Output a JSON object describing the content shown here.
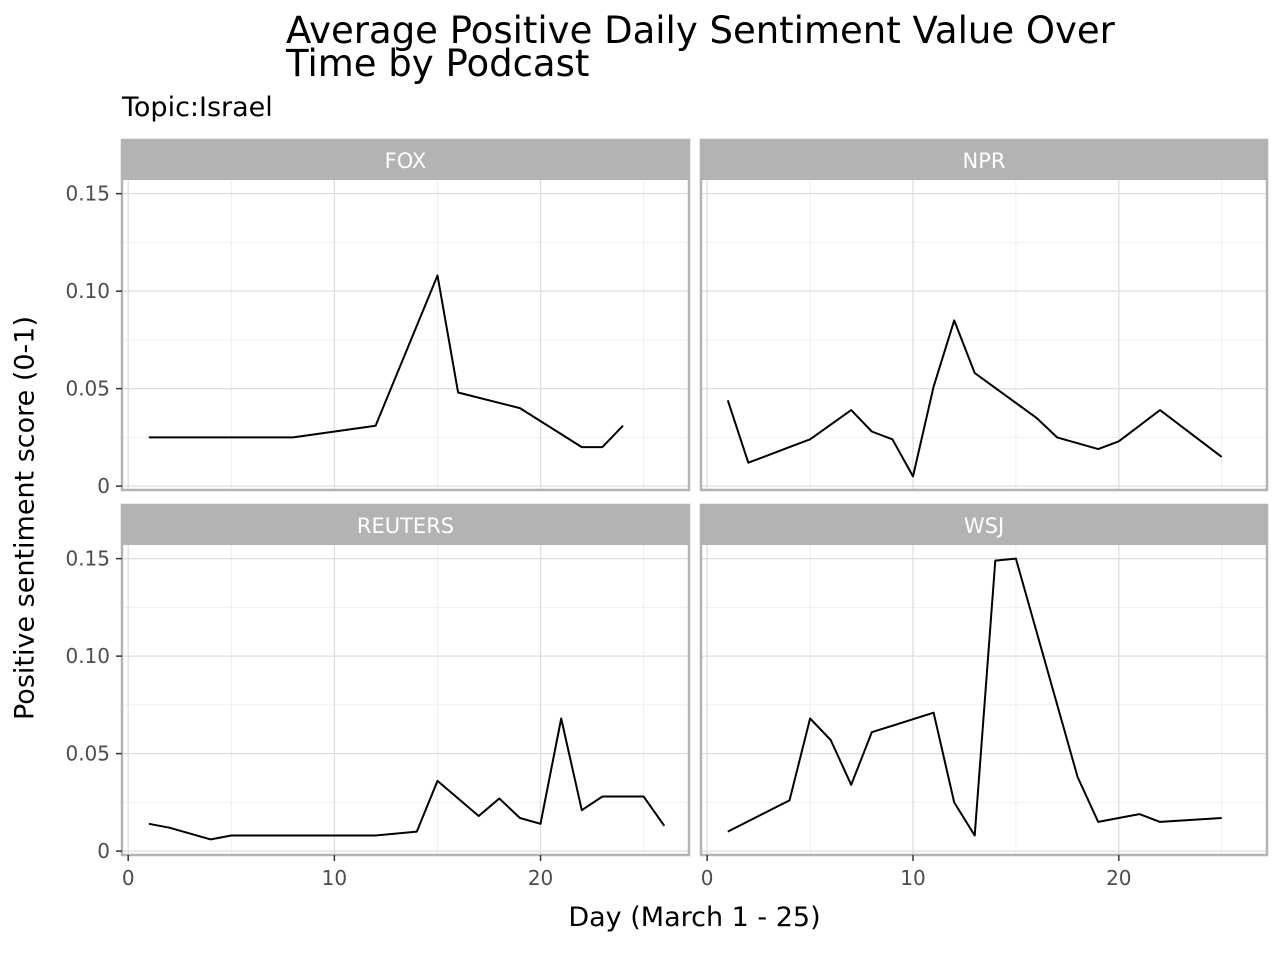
{
  "title_lines": [
    "Average Positive Daily Sentiment Value Over",
    "Time by Podcast"
  ],
  "chart_data": {
    "type": "line",
    "title": "Average Positive Daily Sentiment Value Over Time by Podcast",
    "subtitle": "Topic:Israel",
    "xlabel": "Day (March 1 - 25)",
    "ylabel": "Positive sentiment score (0-1)",
    "xlim": [
      -0.3,
      27.2
    ],
    "ylim": [
      -0.002,
      0.157
    ],
    "x_ticks": [
      0,
      10,
      20
    ],
    "x_tick_labels": [
      "0",
      "10",
      "20"
    ],
    "y_ticks": [
      0,
      0.05,
      0.1,
      0.15
    ],
    "y_tick_labels": [
      "0",
      "0.05",
      "0.10",
      "0.15"
    ],
    "grid": true,
    "facets": [
      {
        "name": "FOX",
        "x": [
          1,
          8,
          12,
          15,
          16,
          19,
          22,
          23,
          24
        ],
        "y": [
          0.025,
          0.025,
          0.031,
          0.108,
          0.048,
          0.04,
          0.02,
          0.02,
          0.031
        ]
      },
      {
        "name": "NPR",
        "x": [
          1,
          2,
          4,
          5,
          7,
          8,
          9,
          10,
          11,
          12,
          13,
          16,
          17,
          19,
          20,
          22,
          25
        ],
        "y": [
          0.044,
          0.012,
          0.02,
          0.024,
          0.039,
          0.028,
          0.024,
          0.005,
          0.051,
          0.085,
          0.058,
          0.035,
          0.025,
          0.019,
          0.023,
          0.039,
          0.015
        ]
      },
      {
        "name": "REUTERS",
        "x": [
          1,
          2,
          4,
          5,
          6,
          7,
          12,
          14,
          15,
          17,
          18,
          19,
          20,
          21,
          22,
          23,
          25,
          26
        ],
        "y": [
          0.014,
          0.012,
          0.006,
          0.008,
          0.008,
          0.008,
          0.008,
          0.01,
          0.036,
          0.018,
          0.027,
          0.017,
          0.014,
          0.068,
          0.021,
          0.028,
          0.028,
          0.013
        ]
      },
      {
        "name": "WSJ",
        "x": [
          1,
          4,
          5,
          6,
          7,
          8,
          11,
          12,
          13,
          14,
          15,
          18,
          19,
          21,
          22,
          25
        ],
        "y": [
          0.01,
          0.026,
          0.068,
          0.057,
          0.034,
          0.061,
          0.071,
          0.025,
          0.008,
          0.149,
          0.15,
          0.038,
          0.015,
          0.019,
          0.015,
          0.017
        ]
      }
    ]
  }
}
